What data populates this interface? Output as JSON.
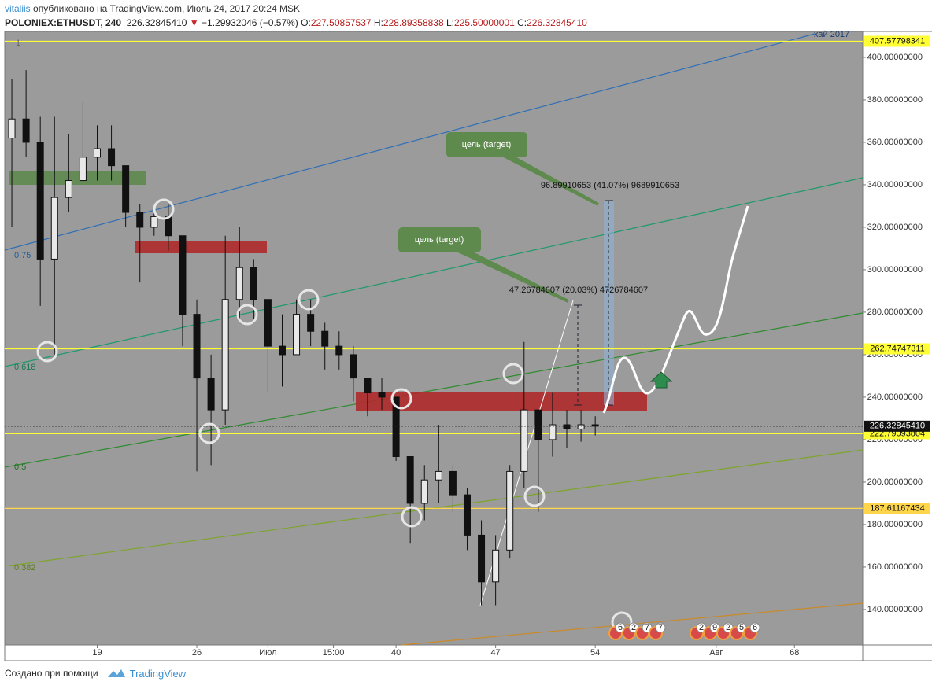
{
  "header": {
    "author": "vitaliis",
    "published": "опубликовано на TradingView.com, Июль 24, 2017 20:24 MSK",
    "symbol": "POLONIEX:ETHUSDT, 240",
    "price": "226.32845410",
    "arrow": "▼",
    "change": "−1.29932046 (−0.57%)",
    "ohlc": [
      {
        "label": "O:",
        "value": "227.50857537"
      },
      {
        "label": "H:",
        "value": "228.89358838"
      },
      {
        "label": "L:",
        "value": "225.50000001"
      },
      {
        "label": "C:",
        "value": "226.32845410"
      }
    ]
  },
  "chart_data": {
    "type": "candlestick",
    "color": "#111111",
    "x": [
      13,
      14,
      15,
      16,
      17,
      18,
      19,
      20,
      21,
      22,
      23,
      24,
      25,
      26,
      27,
      28,
      29,
      30,
      31,
      32,
      33,
      34,
      35,
      36,
      37,
      38,
      39,
      40,
      41,
      42,
      43,
      44,
      45,
      46,
      47,
      48,
      49,
      50,
      51,
      52,
      53,
      54
    ],
    "open": [
      362,
      371,
      360,
      305,
      334,
      342,
      353,
      357,
      349,
      327,
      320,
      325,
      316,
      279,
      249,
      234,
      286,
      301,
      286,
      264,
      260,
      279,
      271,
      264,
      260,
      249,
      242,
      240,
      212,
      190,
      201,
      205,
      194,
      175,
      153,
      168,
      205,
      234,
      220,
      227,
      225,
      227
    ],
    "high": [
      390,
      394,
      372,
      372,
      364,
      379,
      368,
      368,
      349,
      331,
      329,
      331,
      316,
      286,
      260,
      316,
      320,
      305,
      286,
      279,
      286,
      286,
      275,
      271,
      264,
      249,
      249,
      240,
      212,
      208,
      227,
      208,
      197,
      182,
      175,
      208,
      266,
      234,
      242,
      234,
      234,
      231
    ],
    "low": [
      320,
      353,
      283,
      260,
      327,
      342,
      342,
      342,
      320,
      294,
      316,
      309,
      264,
      205,
      208,
      227,
      277,
      275,
      242,
      245,
      260,
      264,
      253,
      253,
      238,
      231,
      234,
      210,
      171,
      182,
      190,
      186,
      168,
      142,
      142,
      164,
      197,
      186,
      212,
      216,
      219,
      222
    ],
    "close": [
      371,
      360,
      305,
      334,
      342,
      353,
      357,
      349,
      327,
      320,
      325,
      316,
      279,
      249,
      234,
      286,
      301,
      286,
      264,
      260,
      279,
      271,
      264,
      260,
      249,
      242,
      240,
      212,
      190,
      201,
      205,
      194,
      175,
      153,
      168,
      205,
      234,
      220,
      227,
      225,
      227,
      226.3284541
    ],
    "xlim": [
      12.5,
      72.8
    ],
    "xticks": [
      19,
      26,
      {
        "value": 31,
        "label": "Июл"
      },
      {
        "value": 35.6,
        "label": "15:00"
      },
      40,
      47,
      54,
      {
        "value": 62.5,
        "label": "Авг"
      },
      68
    ],
    "ylim": [
      123.3,
      412.2
    ],
    "yticks": [
      {
        "value": 140,
        "label": "140.00000000"
      },
      {
        "value": 160,
        "label": "160.00000000"
      },
      {
        "value": 180,
        "label": "180.00000000"
      },
      {
        "value": 200,
        "label": "200.00000000"
      },
      {
        "value": 220,
        "label": "220.00000000"
      },
      {
        "value": 240,
        "label": "240.00000000"
      },
      {
        "value": 260,
        "label": "260.00000000"
      },
      {
        "value": 280,
        "label": "280.00000000"
      },
      {
        "value": 300,
        "label": "300.00000000"
      },
      {
        "value": 320,
        "label": "320.00000000"
      },
      {
        "value": 340,
        "label": "340.00000000"
      },
      {
        "value": 360,
        "label": "360.00000000"
      },
      {
        "value": 380,
        "label": "380.00000000"
      },
      {
        "value": 400,
        "label": "400.00000000"
      }
    ],
    "levels": [
      {
        "value": 407.57798341,
        "color": "#ffff33"
      },
      {
        "value": 262.74747311,
        "color": "#ffff33"
      },
      {
        "value": 222.79093804,
        "color": "#ffff33"
      },
      {
        "value": 187.61167434,
        "color": "#ffd54a"
      }
    ],
    "last_price": {
      "value": 226.3284541,
      "label": "226.32845410"
    },
    "fib_labels": [
      "1",
      "0.75",
      "0.618",
      "0.5",
      "0.382"
    ],
    "channel_label": "хай 2017",
    "targets": [
      "цель (target)",
      "цель (target)"
    ],
    "measures": [
      "96.89910653 (41.07%) 9689910653",
      "47.26784607 (20.03%) 4726784607"
    ],
    "events": [
      [
        "6",
        "2",
        "7",
        "7"
      ],
      [
        "2",
        "9",
        "2",
        "5",
        "6"
      ]
    ]
  },
  "footer": {
    "made_with": "Создано при помощи",
    "brand": "TradingView"
  }
}
